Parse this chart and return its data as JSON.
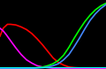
{
  "background_color": "#000000",
  "figsize": [
    1.2,
    0.78
  ],
  "dpi": 100,
  "xlim": [
    0,
    1
  ],
  "ylim": [
    0,
    1.05
  ],
  "curves": [
    {
      "name": "red",
      "color": "#ff0000",
      "lw": 1.2,
      "x": [
        0.0,
        0.03,
        0.07,
        0.1,
        0.15,
        0.2,
        0.25,
        0.3,
        0.35,
        0.4,
        0.45,
        0.5,
        0.55,
        0.6,
        0.65,
        0.7,
        0.8,
        0.9,
        1.0
      ],
      "y": [
        0.5,
        0.62,
        0.68,
        0.68,
        0.67,
        0.64,
        0.6,
        0.54,
        0.46,
        0.37,
        0.27,
        0.17,
        0.1,
        0.06,
        0.03,
        0.02,
        0.01,
        0.01,
        0.01
      ]
    },
    {
      "name": "magenta",
      "color": "#ff00ff",
      "lw": 1.2,
      "x": [
        0.0,
        0.03,
        0.06,
        0.1,
        0.15,
        0.2,
        0.25,
        0.3,
        0.35,
        0.4,
        0.45,
        0.5,
        0.6,
        0.7,
        0.8,
        0.9,
        1.0
      ],
      "y": [
        0.62,
        0.58,
        0.52,
        0.43,
        0.32,
        0.22,
        0.14,
        0.09,
        0.05,
        0.03,
        0.02,
        0.01,
        0.01,
        0.01,
        0.01,
        0.01,
        0.01
      ]
    },
    {
      "name": "green",
      "color": "#00ff00",
      "lw": 1.2,
      "x": [
        0.0,
        0.1,
        0.2,
        0.3,
        0.35,
        0.4,
        0.45,
        0.5,
        0.55,
        0.6,
        0.65,
        0.7,
        0.75,
        0.8,
        0.85,
        0.9,
        0.95,
        1.0
      ],
      "y": [
        0.01,
        0.01,
        0.01,
        0.01,
        0.02,
        0.03,
        0.05,
        0.08,
        0.13,
        0.21,
        0.33,
        0.47,
        0.6,
        0.72,
        0.82,
        0.9,
        0.96,
        1.0
      ]
    },
    {
      "name": "blue",
      "color": "#4488ff",
      "lw": 1.2,
      "x": [
        0.0,
        0.1,
        0.2,
        0.3,
        0.4,
        0.45,
        0.5,
        0.55,
        0.6,
        0.65,
        0.7,
        0.75,
        0.8,
        0.85,
        0.9,
        0.95,
        1.0
      ],
      "y": [
        0.01,
        0.01,
        0.01,
        0.01,
        0.02,
        0.03,
        0.05,
        0.08,
        0.14,
        0.22,
        0.34,
        0.47,
        0.61,
        0.74,
        0.84,
        0.92,
        0.98
      ]
    },
    {
      "name": "cyan",
      "color": "#00ffff",
      "lw": 0.8,
      "x": [
        0.0,
        1.0
      ],
      "y": [
        0.03,
        0.03
      ]
    }
  ]
}
